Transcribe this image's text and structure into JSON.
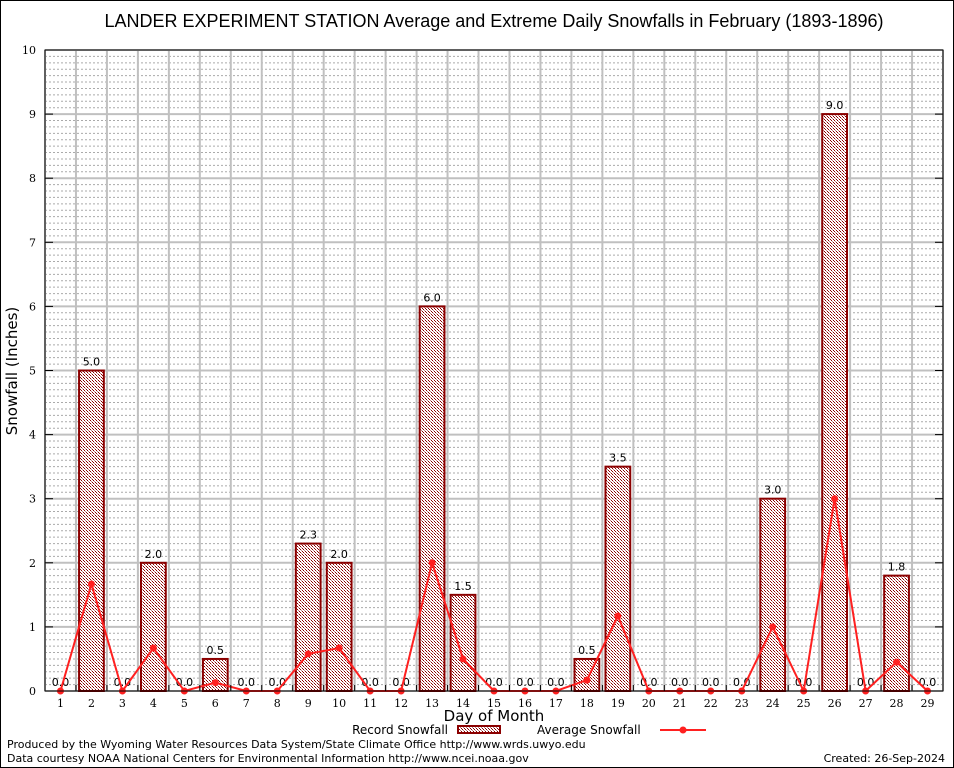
{
  "chart_data": {
    "type": "bar",
    "title": "LANDER EXPERIMENT STATION Average and Extreme Daily Snowfalls in February (1893-1896)",
    "xlabel": "Day of Month",
    "ylabel": "Snowfall (Inches)",
    "ylim": [
      0,
      10
    ],
    "yticks": [
      "0",
      "1",
      "2",
      "3",
      "4",
      "5",
      "6",
      "7",
      "8",
      "9",
      "10"
    ],
    "categories": [
      "1",
      "2",
      "3",
      "4",
      "5",
      "6",
      "7",
      "8",
      "9",
      "10",
      "11",
      "12",
      "13",
      "14",
      "15",
      "16",
      "17",
      "18",
      "19",
      "20",
      "21",
      "22",
      "23",
      "24",
      "25",
      "26",
      "27",
      "28",
      "29"
    ],
    "series": [
      {
        "name": "Record Snowfall",
        "type": "bar",
        "values": [
          0.0,
          5.0,
          0.0,
          2.0,
          0.0,
          0.5,
          0.0,
          0.0,
          2.3,
          2.0,
          0.0,
          0.0,
          6.0,
          1.5,
          0.0,
          0.0,
          0.0,
          0.5,
          3.5,
          0.0,
          0.0,
          0.0,
          0.0,
          3.0,
          0.0,
          9.0,
          0.0,
          1.8,
          0.0
        ],
        "labels": [
          "0.0",
          "5.0",
          "0.0",
          "2.0",
          "0.0",
          "0.5",
          "0.0",
          "0.0",
          "2.3",
          "2.0",
          "0.0",
          "0.0",
          "6.0",
          "1.5",
          "0.0",
          "0.0",
          "0.0",
          "0.5",
          "3.5",
          "0.0",
          "0.0",
          "0.0",
          "0.0",
          "3.0",
          "0.0",
          "9.0",
          "0.0",
          "1.8",
          "0.0"
        ],
        "color": "#8b0000"
      },
      {
        "name": "Average Snowfall",
        "type": "line",
        "values": [
          0,
          1.67,
          0,
          0.67,
          0,
          0.13,
          0,
          0,
          0.58,
          0.67,
          0,
          0,
          2.0,
          0.5,
          0,
          0,
          0,
          0.17,
          1.17,
          0,
          0,
          0,
          0,
          1.0,
          0,
          3.0,
          0,
          0.45,
          0
        ],
        "color": "#ff2020"
      }
    ],
    "grid": true,
    "legend": "bottom"
  },
  "footer": {
    "line1": "Produced by the Wyoming Water Resources Data System/State Climate Office http://www.wrds.uwyo.edu",
    "line2": "Data courtesy NOAA National Centers for Environmental Information http://www.ncei.noaa.gov",
    "created": "Created: 26-Sep-2024"
  }
}
